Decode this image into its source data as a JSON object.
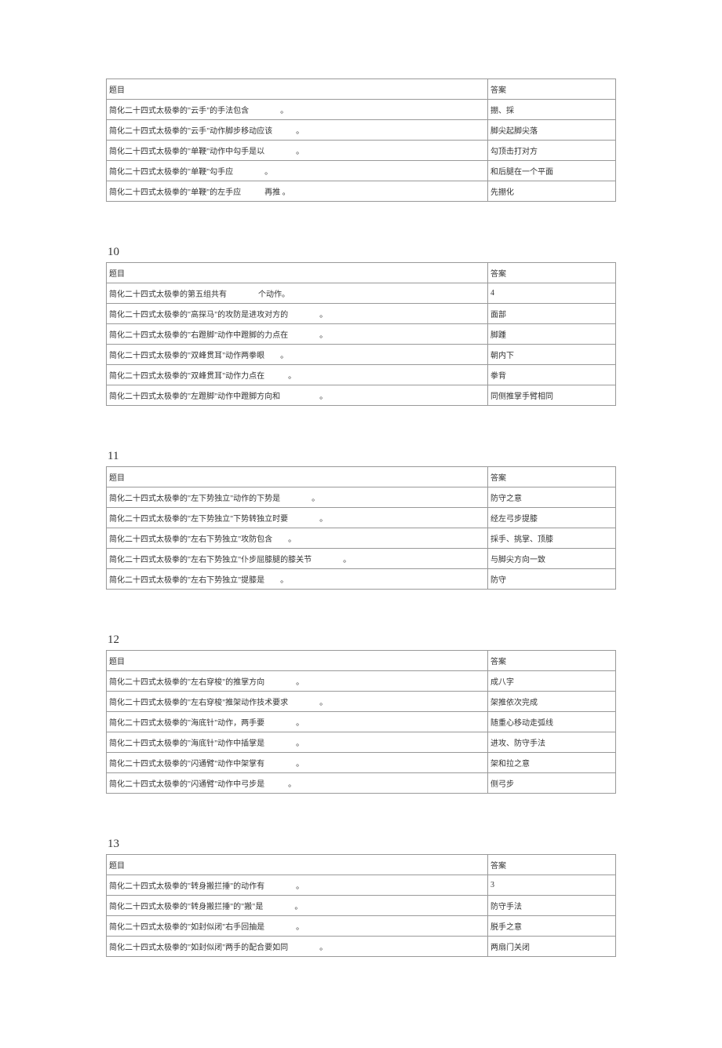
{
  "sections": [
    {
      "number": "",
      "header_q": "题目",
      "header_a": "答案",
      "rows": [
        {
          "q": "简化二十四式太极拳的\"云手\"的手法包含　　　　。",
          "a": "掤、採"
        },
        {
          "q": "简化二十四式太极拳的\"云手\"动作脚步移动应该　　　。",
          "a": "脚尖起脚尖落"
        },
        {
          "q": "简化二十四式太极拳的\"单鞭\"动作中勾手是以　　　　。",
          "a": "勾顶击打对方"
        },
        {
          "q": "简化二十四式太极拳的\"单鞭\"勾手应　　　　。",
          "a": "和后腿在一个平面"
        },
        {
          "q": "简化二十四式太极拳的\"单鞭\"的左手应　　　再推 。",
          "a": "先掤化"
        }
      ]
    },
    {
      "number": "10",
      "header_q": "题目",
      "header_a": "答案",
      "rows": [
        {
          "q": "简化二十四式太极拳的第五组共有　　　　个动作。",
          "a": "4"
        },
        {
          "q": "简化二十四式太极拳的\"高探马\"的攻防是进攻对方的　　　　。",
          "a": "面部"
        },
        {
          "q": "简化二十四式太极拳的\"右蹬脚\"动作中蹬脚的力点在　　　　。",
          "a": "脚踵"
        },
        {
          "q": "简化二十四式太极拳的\"双峰贯耳\"动作两拳眼　　。",
          "a": "朝内下"
        },
        {
          "q": "简化二十四式太极拳的\"双峰贯耳\"动作力点在　　　。",
          "a": "拳背"
        },
        {
          "q": "简化二十四式太极拳的\"左蹬脚\"动作中蹬脚方向和　　　　　。",
          "a": "同侧推掌手臂相同"
        }
      ]
    },
    {
      "number": "11",
      "header_q": "题目",
      "header_a": "答案",
      "rows": [
        {
          "q": "简化二十四式太极拳的\"左下势独立\"动作的下势是　　　　。",
          "a": "防守之意"
        },
        {
          "q": "简化二十四式太极拳的\"左下势独立\"下势转独立时要　　　　。",
          "a": "经左弓步提膝"
        },
        {
          "q": "简化二十四式太极拳的\"左右下势独立\"攻防包含　　。",
          "a": "採手、挑掌、顶膝"
        },
        {
          "q": "简化二十四式太极拳的\"左右下势独立\"仆步屈膝腿的膝关节　　　　。",
          "a": "与脚尖方向一致"
        },
        {
          "q": "简化二十四式太极拳的\"左右下势独立\"提膝是　　。",
          "a": "防守"
        }
      ]
    },
    {
      "number": "12",
      "header_q": "题目",
      "header_a": "答案",
      "rows": [
        {
          "q": "简化二十四式太极拳的\"左右穿梭\"的推掌方向　　　　。",
          "a": "成八字"
        },
        {
          "q": "简化二十四式太极拳的\"左右穿梭\"推架动作技术要求　　　　。",
          "a": "架推依次完成"
        },
        {
          "q": "简化二十四式太极拳的\"海底针\"动作，两手要　　　　。",
          "a": "随重心移动走弧线"
        },
        {
          "q": "简化二十四式太极拳的\"海底针\"动作中插掌是　　　　。",
          "a": "进攻、防守手法"
        },
        {
          "q": "简化二十四式太极拳的\"闪通臂\"动作中架掌有　　　　。",
          "a": "架和拉之意"
        },
        {
          "q": "简化二十四式太极拳的\"闪通臂\"动作中弓步是　　　。",
          "a": "侧弓步"
        }
      ]
    },
    {
      "number": "13",
      "header_q": "题目",
      "header_a": "答案",
      "rows": [
        {
          "q": "简化二十四式太极拳的\"转身搬拦捶\"的动作有　　　　。",
          "a": "3"
        },
        {
          "q": "简化二十四式太极拳的\"转身搬拦捶\"的\"搬\"是　　　　。",
          "a": "防守手法"
        },
        {
          "q": "简化二十四式太极拳的\"如封似闭\"右手回抽是　　　　。",
          "a": "脱手之意"
        },
        {
          "q": "简化二十四式太极拳的\"如封似闭\"两手的配合要如同　　　　。",
          "a": "两扇门关闭"
        }
      ]
    }
  ]
}
